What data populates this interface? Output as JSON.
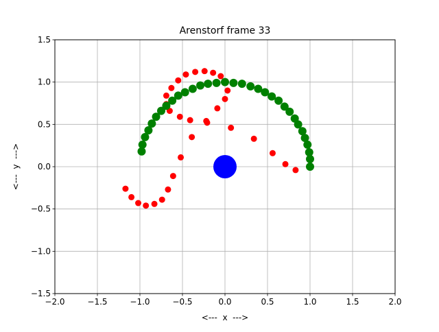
{
  "chart_data": {
    "type": "scatter",
    "title": "Arenstorf frame 33",
    "xlabel": "<---  x  --->",
    "ylabel": "<---  y  --->",
    "xlim": [
      -2.0,
      2.0
    ],
    "ylim": [
      -1.5,
      1.5
    ],
    "xticks": [
      -2.0,
      -1.5,
      -1.0,
      -0.5,
      0.0,
      0.5,
      1.0,
      1.5,
      2.0
    ],
    "yticks": [
      -1.5,
      -1.0,
      -0.5,
      0.0,
      0.5,
      1.0,
      1.5
    ],
    "xtick_labels": [
      "−2.0",
      "−1.5",
      "−1.0",
      "−0.5",
      "0.0",
      "0.5",
      "1.0",
      "1.5",
      "2.0"
    ],
    "ytick_labels": [
      "−1.5",
      "−1.0",
      "−0.5",
      "0.0",
      "0.5",
      "1.0",
      "1.5"
    ],
    "grid": true,
    "legend": "none",
    "series": [
      {
        "color": "#ff0000",
        "marker_size": "small",
        "points": [
          [
            0.99,
            0.0
          ],
          [
            0.83,
            -0.04
          ],
          [
            0.71,
            0.03
          ],
          [
            0.56,
            0.16
          ],
          [
            0.34,
            0.33
          ],
          [
            0.07,
            0.46
          ],
          [
            -0.21,
            0.52
          ],
          [
            -0.22,
            0.54
          ],
          [
            -0.41,
            0.55
          ],
          [
            -0.53,
            0.59
          ],
          [
            -0.65,
            0.66
          ],
          [
            -0.69,
            0.74
          ],
          [
            -0.69,
            0.84
          ],
          [
            -0.63,
            0.93
          ],
          [
            -0.55,
            1.02
          ],
          [
            -0.46,
            1.09
          ],
          [
            -0.35,
            1.12
          ],
          [
            -0.24,
            1.13
          ],
          [
            -0.14,
            1.11
          ],
          [
            -0.05,
            1.07
          ],
          [
            0.0,
            1.0
          ],
          [
            0.03,
            0.9
          ],
          [
            0.0,
            0.8
          ],
          [
            -0.09,
            0.69
          ],
          [
            -0.39,
            0.35
          ],
          [
            -0.52,
            0.11
          ],
          [
            -0.61,
            -0.11
          ],
          [
            -0.67,
            -0.27
          ],
          [
            -0.74,
            -0.39
          ],
          [
            -0.83,
            -0.44
          ],
          [
            -0.93,
            -0.46
          ],
          [
            -1.02,
            -0.43
          ],
          [
            -1.1,
            -0.36
          ],
          [
            -1.17,
            -0.26
          ]
        ]
      },
      {
        "color": "#008000",
        "marker_size": "medium",
        "points": [
          [
            1.0,
            0.0
          ],
          [
            1.0,
            0.09
          ],
          [
            0.99,
            0.17
          ],
          [
            0.97,
            0.26
          ],
          [
            0.94,
            0.34
          ],
          [
            0.91,
            0.42
          ],
          [
            0.86,
            0.5
          ],
          [
            0.82,
            0.57
          ],
          [
            0.76,
            0.65
          ],
          [
            0.7,
            0.71
          ],
          [
            0.63,
            0.78
          ],
          [
            0.55,
            0.83
          ],
          [
            0.47,
            0.88
          ],
          [
            0.39,
            0.92
          ],
          [
            0.3,
            0.95
          ],
          [
            0.2,
            0.98
          ],
          [
            0.1,
            0.99
          ],
          [
            0.0,
            1.0
          ],
          [
            -0.1,
            0.99
          ],
          [
            -0.2,
            0.98
          ],
          [
            -0.29,
            0.96
          ],
          [
            -0.38,
            0.92
          ],
          [
            -0.47,
            0.88
          ],
          [
            -0.55,
            0.84
          ],
          [
            -0.62,
            0.78
          ],
          [
            -0.69,
            0.72
          ],
          [
            -0.75,
            0.66
          ],
          [
            -0.81,
            0.59
          ],
          [
            -0.86,
            0.51
          ],
          [
            -0.9,
            0.43
          ],
          [
            -0.94,
            0.35
          ],
          [
            -0.97,
            0.26
          ],
          [
            -0.98,
            0.18
          ]
        ]
      },
      {
        "color": "#0000ff",
        "marker_size": "large",
        "points": [
          [
            0.0,
            0.0
          ]
        ]
      }
    ]
  }
}
